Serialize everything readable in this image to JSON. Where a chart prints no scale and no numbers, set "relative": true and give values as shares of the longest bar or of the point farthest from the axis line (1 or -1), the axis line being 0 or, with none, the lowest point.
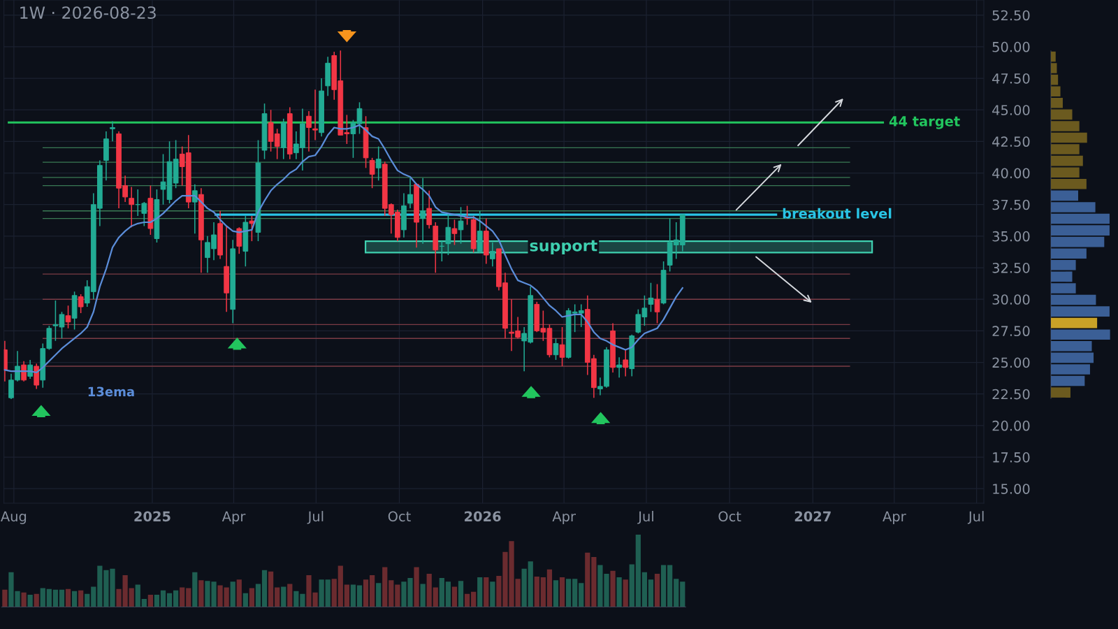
{
  "chart_data": [
    {
      "type": "candlestick",
      "title": "1W · 2026-08-23",
      "x": [
        "2024-07-22",
        "2024-07-29",
        "2024-08-05",
        "2024-08-12",
        "2024-08-19",
        "2024-08-26",
        "2024-09-02",
        "2024-09-09",
        "2024-09-16",
        "2024-09-23",
        "2024-09-30",
        "2024-10-07",
        "2024-10-14",
        "2024-10-21",
        "2024-10-28",
        "2024-11-04",
        "2024-11-11",
        "2024-11-18",
        "2024-11-25",
        "2024-12-02",
        "2024-12-09",
        "2024-12-16",
        "2024-12-23",
        "2024-12-30",
        "2025-01-06",
        "2025-01-13",
        "2025-01-20",
        "2025-01-27",
        "2025-02-03",
        "2025-02-10",
        "2025-02-17",
        "2025-02-24",
        "2025-03-03",
        "2025-03-10",
        "2025-03-17",
        "2025-03-24",
        "2025-03-31",
        "2025-04-07",
        "2025-04-14",
        "2025-04-21",
        "2025-04-28",
        "2025-05-05",
        "2025-05-12",
        "2025-05-19",
        "2025-05-26",
        "2025-06-02",
        "2025-06-09",
        "2025-06-16",
        "2025-06-23",
        "2025-06-30",
        "2025-07-07",
        "2025-07-14",
        "2025-07-21",
        "2025-07-28",
        "2025-08-04",
        "2025-08-11",
        "2025-08-18",
        "2025-08-25",
        "2025-09-01",
        "2025-09-08",
        "2025-09-15",
        "2025-09-22",
        "2025-09-29",
        "2025-10-06",
        "2025-10-13",
        "2025-10-20",
        "2025-10-27",
        "2025-11-03",
        "2025-11-10",
        "2025-11-17",
        "2025-11-24",
        "2025-12-01",
        "2025-12-08",
        "2025-12-15",
        "2025-12-22",
        "2025-12-29",
        "2026-01-05",
        "2026-01-12",
        "2026-01-19",
        "2026-01-26",
        "2026-02-02",
        "2026-02-09",
        "2026-02-16",
        "2026-02-23",
        "2026-03-02",
        "2026-03-09",
        "2026-03-16",
        "2026-03-23",
        "2026-03-30",
        "2026-04-06",
        "2026-04-13",
        "2026-04-20",
        "2026-04-27",
        "2026-05-04",
        "2026-05-11",
        "2026-05-18",
        "2026-05-25",
        "2026-06-01",
        "2026-06-08",
        "2026-06-15",
        "2026-06-22",
        "2026-06-29",
        "2026-07-06",
        "2026-07-13",
        "2026-07-20",
        "2026-07-27",
        "2026-08-03",
        "2026-08-10"
      ],
      "ohlc": [
        [
          26.0,
          26.7,
          23.5,
          24.4
        ],
        [
          22.2,
          24.1,
          22.1,
          23.6
        ],
        [
          23.6,
          25.9,
          23.5,
          24.7
        ],
        [
          24.8,
          25.1,
          23.5,
          23.6
        ],
        [
          23.9,
          25.2,
          23.7,
          24.8
        ],
        [
          24.7,
          24.9,
          22.9,
          23.2
        ],
        [
          23.6,
          26.5,
          23.0,
          26.1
        ],
        [
          26.1,
          27.9,
          26.0,
          27.7
        ],
        [
          27.9,
          29.9,
          26.7,
          28.0
        ],
        [
          27.8,
          29.0,
          26.9,
          28.8
        ],
        [
          28.7,
          29.5,
          27.7,
          28.2
        ],
        [
          28.5,
          30.6,
          27.6,
          30.3
        ],
        [
          30.2,
          30.4,
          28.9,
          29.4
        ],
        [
          29.7,
          31.5,
          29.4,
          31.0
        ],
        [
          30.6,
          38.4,
          30.0,
          37.5
        ],
        [
          37.2,
          41.0,
          35.8,
          40.6
        ],
        [
          41.0,
          43.3,
          39.4,
          42.7
        ],
        [
          43.5,
          44.1,
          42.5,
          43.6
        ],
        [
          43.1,
          43.3,
          37.2,
          38.8
        ],
        [
          39.0,
          39.8,
          37.7,
          38.1
        ],
        [
          38.0,
          38.9,
          35.7,
          37.5
        ],
        [
          37.5,
          38.7,
          36.6,
          37.5
        ],
        [
          36.8,
          37.7,
          35.8,
          37.6
        ],
        [
          38.0,
          39.0,
          35.1,
          35.6
        ],
        [
          34.8,
          38.7,
          34.5,
          37.9
        ],
        [
          38.7,
          41.5,
          37.5,
          39.3
        ],
        [
          37.9,
          42.5,
          37.6,
          40.9
        ],
        [
          39.2,
          42.6,
          38.8,
          41.1
        ],
        [
          41.5,
          42.1,
          39.0,
          40.5
        ],
        [
          41.6,
          43.0,
          37.2,
          37.7
        ],
        [
          37.7,
          39.1,
          35.2,
          38.6
        ],
        [
          38.3,
          38.8,
          32.1,
          34.7
        ],
        [
          33.3,
          35.0,
          32.1,
          34.5
        ],
        [
          34.0,
          36.1,
          33.1,
          35.1
        ],
        [
          36.0,
          37.0,
          33.2,
          33.5
        ],
        [
          32.6,
          35.8,
          29.0,
          30.5
        ],
        [
          29.2,
          34.7,
          28.1,
          34.0
        ],
        [
          35.6,
          35.7,
          33.6,
          34.2
        ],
        [
          33.8,
          36.6,
          32.6,
          36.1
        ],
        [
          36.2,
          36.6,
          34.6,
          36.0
        ],
        [
          35.3,
          42.6,
          34.6,
          40.8
        ],
        [
          41.8,
          45.5,
          41.1,
          44.7
        ],
        [
          44.0,
          45.0,
          41.7,
          42.5
        ],
        [
          43.1,
          43.5,
          41.1,
          42.1
        ],
        [
          42.0,
          44.3,
          41.1,
          44.0
        ],
        [
          44.7,
          45.2,
          41.1,
          41.5
        ],
        [
          41.6,
          43.3,
          41.1,
          42.3
        ],
        [
          42.0,
          45.1,
          40.2,
          43.9
        ],
        [
          44.5,
          44.9,
          41.7,
          43.6
        ],
        [
          43.5,
          46.6,
          42.6,
          43.4
        ],
        [
          43.2,
          47.5,
          42.9,
          46.5
        ],
        [
          46.9,
          49.2,
          46.1,
          48.7
        ],
        [
          49.3,
          49.6,
          45.8,
          46.6
        ],
        [
          47.3,
          49.7,
          43.0,
          43.0
        ],
        [
          43.2,
          44.6,
          42.3,
          43.1
        ],
        [
          43.1,
          44.2,
          41.2,
          44.0
        ],
        [
          43.9,
          45.6,
          43.1,
          45.1
        ],
        [
          43.6,
          44.5,
          40.4,
          41.2
        ],
        [
          41.0,
          41.2,
          38.8,
          39.9
        ],
        [
          40.4,
          42.1,
          39.4,
          41.1
        ],
        [
          40.7,
          40.9,
          36.6,
          37.2
        ],
        [
          37.5,
          37.6,
          35.2,
          36.7
        ],
        [
          36.9,
          37.1,
          34.6,
          34.9
        ],
        [
          35.5,
          38.4,
          34.9,
          37.4
        ],
        [
          37.6,
          39.6,
          37.2,
          38.3
        ],
        [
          39.1,
          39.2,
          34.1,
          36.1
        ],
        [
          36.4,
          39.6,
          34.4,
          37.0
        ],
        [
          37.2,
          38.6,
          35.6,
          35.9
        ],
        [
          35.8,
          36.1,
          32.1,
          33.9
        ],
        [
          34.2,
          34.6,
          33.0,
          34.2
        ],
        [
          34.4,
          36.8,
          33.5,
          35.7
        ],
        [
          35.6,
          36.3,
          34.3,
          35.2
        ],
        [
          35.5,
          37.3,
          34.4,
          36.2
        ],
        [
          36.5,
          37.4,
          35.9,
          36.4
        ],
        [
          36.3,
          36.6,
          33.7,
          34.0
        ],
        [
          33.8,
          37.0,
          33.7,
          35.4
        ],
        [
          35.4,
          36.4,
          32.8,
          33.5
        ],
        [
          33.2,
          34.5,
          32.6,
          33.8
        ],
        [
          34.0,
          34.0,
          30.7,
          31.0
        ],
        [
          31.3,
          32.1,
          26.9,
          27.7
        ],
        [
          27.4,
          30.0,
          25.9,
          27.3
        ],
        [
          27.5,
          28.6,
          26.9,
          27.0
        ],
        [
          26.7,
          27.8,
          24.3,
          27.3
        ],
        [
          26.6,
          31.0,
          26.5,
          30.3
        ],
        [
          29.6,
          29.8,
          27.4,
          27.5
        ],
        [
          27.7,
          29.1,
          26.7,
          27.4
        ],
        [
          27.7,
          28.0,
          25.4,
          25.6
        ],
        [
          25.6,
          26.9,
          25.2,
          26.5
        ],
        [
          26.4,
          27.8,
          24.7,
          25.4
        ],
        [
          25.4,
          29.3,
          25.3,
          29.1
        ],
        [
          28.9,
          29.6,
          27.4,
          29.0
        ],
        [
          28.9,
          29.6,
          27.8,
          29.1
        ],
        [
          29.2,
          30.3,
          24.0,
          25.0
        ],
        [
          25.3,
          25.6,
          22.2,
          23.0
        ],
        [
          22.9,
          23.8,
          22.4,
          23.1
        ],
        [
          23.1,
          26.2,
          23.0,
          26.0
        ],
        [
          27.5,
          28.1,
          24.2,
          24.6
        ],
        [
          24.6,
          25.4,
          23.8,
          24.8
        ],
        [
          25.2,
          26.0,
          23.9,
          24.6
        ],
        [
          24.5,
          27.2,
          23.9,
          27.1
        ],
        [
          27.4,
          29.2,
          27.3,
          28.8
        ],
        [
          28.6,
          30.3,
          27.9,
          29.3
        ],
        [
          29.6,
          31.3,
          29.0,
          30.1
        ],
        [
          30.0,
          31.2,
          28.1,
          29.0
        ],
        [
          29.7,
          33.0,
          29.6,
          32.3
        ],
        [
          32.7,
          36.4,
          32.2,
          34.5
        ],
        [
          34.3,
          36.1,
          33.2,
          34.7
        ],
        [
          34.3,
          36.7,
          33.8,
          36.7
        ]
      ],
      "colors": [
        "#f23645",
        "#22ab94",
        "#22ab94",
        "#f23645",
        "#22ab94",
        "#f23645",
        "#22ab94",
        "#22ab94",
        "#22ab94",
        "#22ab94",
        "#f23645",
        "#22ab94",
        "#f23645",
        "#22ab94",
        "#22ab94",
        "#22ab94",
        "#22ab94",
        "#22ab94",
        "#f23645",
        "#f23645",
        "#f23645",
        "#22ab94",
        "#22ab94",
        "#f23645",
        "#22ab94",
        "#22ab94",
        "#22ab94",
        "#22ab94",
        "#f23645",
        "#f23645",
        "#22ab94",
        "#f23645",
        "#22ab94",
        "#22ab94",
        "#f23645",
        "#f23645",
        "#22ab94",
        "#f23645",
        "#22ab94",
        "#f23645",
        "#22ab94",
        "#22ab94",
        "#f23645",
        "#f23645",
        "#22ab94",
        "#f23645",
        "#22ab94",
        "#22ab94",
        "#f23645",
        "#f23645",
        "#22ab94",
        "#22ab94",
        "#f23645",
        "#f23645",
        "#f23645",
        "#22ab94",
        "#22ab94",
        "#f23645",
        "#f23645",
        "#22ab94",
        "#f23645",
        "#f23645",
        "#f23645",
        "#22ab94",
        "#22ab94",
        "#f23645",
        "#22ab94",
        "#f23645",
        "#f23645",
        "#22ab94",
        "#22ab94",
        "#f23645",
        "#22ab94",
        "#f23645",
        "#f23645",
        "#22ab94",
        "#f23645",
        "#22ab94",
        "#f23645",
        "#f23645",
        "#f23645",
        "#f23645",
        "#22ab94",
        "#22ab94",
        "#f23645",
        "#f23645",
        "#f23645",
        "#22ab94",
        "#f23645",
        "#22ab94",
        "#22ab94",
        "#22ab94",
        "#f23645",
        "#f23645",
        "#22ab94",
        "#22ab94",
        "#f23645",
        "#22ab94",
        "#f23645",
        "#22ab94",
        "#22ab94",
        "#22ab94",
        "#22ab94",
        "#f23645",
        "#22ab94",
        "#22ab94",
        "#22ab94",
        "#22ab94"
      ],
      "series": [
        {
          "type": "line",
          "name": "13ema",
          "color": "#5b8dd9",
          "values": [
            24.4,
            24.3,
            24.3,
            24.3,
            24.3,
            24.2,
            24.6,
            25.1,
            25.6,
            26.1,
            26.5,
            26.9,
            27.3,
            27.8,
            29.0,
            31.0,
            32.4,
            34.1,
            34.9,
            35.4,
            35.8,
            36.0,
            36.1,
            36.1,
            36.4,
            36.8,
            37.3,
            37.8,
            38.2,
            38.2,
            38.2,
            37.7,
            37.2,
            36.9,
            36.3,
            35.8,
            35.4,
            35.3,
            35.4,
            35.5,
            36.9,
            37.8,
            38.6,
            39.1,
            39.5,
            40.0,
            40.3,
            40.9,
            41.3,
            41.4,
            42.1,
            43.0,
            43.6,
            43.5,
            43.5,
            43.6,
            43.8,
            43.4,
            42.9,
            42.7,
            41.9,
            41.0,
            40.2,
            39.9,
            39.7,
            39.1,
            38.7,
            38.2,
            37.3,
            36.9,
            36.8,
            36.7,
            36.6,
            36.5,
            36.5,
            36.2,
            35.8,
            35.4,
            34.7,
            33.5,
            32.4,
            31.5,
            31.3,
            31.1,
            30.7,
            30.1,
            29.5,
            29.1,
            28.6,
            28.7,
            28.8,
            28.8,
            28.2,
            27.4,
            26.9,
            26.7,
            26.4,
            26.2,
            26.0,
            26.2,
            26.8,
            27.3,
            27.5,
            27.7,
            28.4,
            29.3,
            30.2,
            30.9
          ]
        }
      ],
      "xlim": [
        "2024-07-21",
        "2027-07-09"
      ],
      "xticks": [
        {
          "value": "2024-08-01",
          "label": "Aug"
        },
        {
          "value": "2025-01-01",
          "label": "2025"
        },
        {
          "value": "2025-04-01",
          "label": "Apr"
        },
        {
          "value": "2025-07-01",
          "label": "Jul"
        },
        {
          "value": "2025-10-01",
          "label": "Oct"
        },
        {
          "value": "2026-01-01",
          "label": "2026"
        },
        {
          "value": "2026-04-01",
          "label": "Apr"
        },
        {
          "value": "2026-07-01",
          "label": "Jul"
        },
        {
          "value": "2026-10-01",
          "label": "Oct"
        },
        {
          "value": "2027-01-01",
          "label": "2027"
        },
        {
          "value": "2027-04-01",
          "label": "Apr"
        },
        {
          "value": "2027-07-01",
          "label": "Jul"
        }
      ],
      "ylim": [
        13.85,
        53.7
      ],
      "yticks": [
        {
          "value": 15,
          "label": "15.00"
        },
        {
          "value": 17.5,
          "label": "17.50"
        },
        {
          "value": 20,
          "label": "20.00"
        },
        {
          "value": 22.5,
          "label": "22.50"
        },
        {
          "value": 25,
          "label": "25.00"
        },
        {
          "value": 27.5,
          "label": "27.50"
        },
        {
          "value": 30,
          "label": "30.00"
        },
        {
          "value": 32.5,
          "label": "32.50"
        },
        {
          "value": 35,
          "label": "35.00"
        },
        {
          "value": 37.5,
          "label": "37.50"
        },
        {
          "value": 40,
          "label": "40.00"
        },
        {
          "value": 42.5,
          "label": "42.50"
        },
        {
          "value": 45,
          "label": "45.00"
        },
        {
          "value": 47.5,
          "label": "47.50"
        },
        {
          "value": 50,
          "label": "50.00"
        },
        {
          "value": 52.5,
          "label": "52.50"
        }
      ],
      "ref_lines": [
        {
          "axis": "y",
          "value": 44,
          "label": "44 target",
          "color": "#22c55e"
        },
        {
          "axis": "y",
          "value": 36.7,
          "label": "breakout level",
          "color": "#29c5e6"
        },
        {
          "axis": "y",
          "value": 42.0,
          "color": "#3a7a55"
        },
        {
          "axis": "y",
          "value": 40.85,
          "color": "#3a7a55"
        },
        {
          "axis": "y",
          "value": 39.65,
          "color": "#3a7a55"
        },
        {
          "axis": "y",
          "value": 39.0,
          "color": "#3a7a55"
        },
        {
          "axis": "y",
          "value": 37.0,
          "color": "#3a7a55"
        },
        {
          "axis": "y",
          "value": 36.4,
          "color": "#3a7a55"
        },
        {
          "axis": "y",
          "value": 32.0,
          "color": "#7b3b45"
        },
        {
          "axis": "y",
          "value": 30.0,
          "color": "#7b3b45"
        },
        {
          "axis": "y",
          "value": 28.0,
          "color": "#7b3b45"
        },
        {
          "axis": "y",
          "value": 26.9,
          "color": "#7b3b45"
        },
        {
          "axis": "y",
          "value": 24.7,
          "color": "#7b3b45"
        }
      ],
      "bands": [
        {
          "axis": "y",
          "from": 33.7,
          "to": 34.6,
          "label": "support",
          "color": "#3fd0b0"
        }
      ],
      "grid": true
    },
    {
      "type": "bar",
      "relative": true,
      "tick_labels": false,
      "categories": [
        null,
        null,
        null,
        null,
        null,
        null,
        null,
        null,
        null,
        null,
        null,
        null,
        null,
        null,
        null,
        null,
        null,
        null,
        null,
        null,
        null,
        null,
        null,
        null,
        null,
        null,
        null,
        null,
        null,
        null,
        null,
        null,
        null,
        null,
        null,
        null,
        null,
        null,
        null,
        null,
        null,
        null,
        null,
        null,
        null,
        null,
        null,
        null,
        null,
        null,
        null,
        null,
        null,
        null,
        null,
        null,
        null,
        null,
        null,
        null,
        null,
        null,
        null,
        null,
        null,
        null,
        null,
        null,
        null,
        null,
        null,
        null,
        null,
        null,
        null,
        null,
        null,
        null,
        null,
        null,
        null,
        null,
        null,
        null,
        null,
        null,
        null,
        null,
        null,
        null,
        null,
        null,
        null,
        null,
        null,
        null,
        null,
        null,
        null,
        null,
        null,
        null,
        null,
        null,
        null,
        null,
        null,
        null
      ],
      "values": [
        0.24,
        0.48,
        0.22,
        0.2,
        0.17,
        0.18,
        0.26,
        0.25,
        0.24,
        0.24,
        0.25,
        0.22,
        0.23,
        0.18,
        0.28,
        0.57,
        0.51,
        0.53,
        0.25,
        0.44,
        0.26,
        0.31,
        0.11,
        0.17,
        0.17,
        0.23,
        0.19,
        0.23,
        0.27,
        0.26,
        0.48,
        0.37,
        0.36,
        0.35,
        0.3,
        0.27,
        0.35,
        0.38,
        0.19,
        0.26,
        0.32,
        0.51,
        0.49,
        0.27,
        0.28,
        0.32,
        0.22,
        0.18,
        0.44,
        0.2,
        0.38,
        0.38,
        0.39,
        0.57,
        0.31,
        0.31,
        0.3,
        0.38,
        0.44,
        0.33,
        0.55,
        0.37,
        0.31,
        0.35,
        0.4,
        0.55,
        0.32,
        0.46,
        0.27,
        0.4,
        0.35,
        0.28,
        0.36,
        0.18,
        0.21,
        0.41,
        0.41,
        0.35,
        0.43,
        0.76,
        0.91,
        0.39,
        0.53,
        0.63,
        0.42,
        0.41,
        0.52,
        0.37,
        0.41,
        0.39,
        0.39,
        0.33,
        0.75,
        0.69,
        0.58,
        0.46,
        0.5,
        0.41,
        0.38,
        0.59,
        1,
        0.48,
        0.38,
        0.46,
        0.58,
        0.58,
        0.39,
        0.35
      ],
      "colors": [
        "#6b2b2f",
        "#1f5f52",
        "#1f5f52",
        "#6b2b2f",
        "#1f5f52",
        "#6b2b2f",
        "#1f5f52",
        "#1f5f52",
        "#1f5f52",
        "#1f5f52",
        "#6b2b2f",
        "#1f5f52",
        "#6b2b2f",
        "#1f5f52",
        "#1f5f52",
        "#1f5f52",
        "#1f5f52",
        "#1f5f52",
        "#6b2b2f",
        "#6b2b2f",
        "#6b2b2f",
        "#1f5f52",
        "#1f5f52",
        "#6b2b2f",
        "#1f5f52",
        "#1f5f52",
        "#1f5f52",
        "#1f5f52",
        "#6b2b2f",
        "#6b2b2f",
        "#1f5f52",
        "#6b2b2f",
        "#1f5f52",
        "#1f5f52",
        "#6b2b2f",
        "#6b2b2f",
        "#1f5f52",
        "#6b2b2f",
        "#1f5f52",
        "#6b2b2f",
        "#1f5f52",
        "#1f5f52",
        "#6b2b2f",
        "#6b2b2f",
        "#1f5f52",
        "#6b2b2f",
        "#1f5f52",
        "#1f5f52",
        "#6b2b2f",
        "#6b2b2f",
        "#1f5f52",
        "#1f5f52",
        "#6b2b2f",
        "#6b2b2f",
        "#6b2b2f",
        "#1f5f52",
        "#1f5f52",
        "#6b2b2f",
        "#6b2b2f",
        "#1f5f52",
        "#6b2b2f",
        "#6b2b2f",
        "#6b2b2f",
        "#1f5f52",
        "#1f5f52",
        "#6b2b2f",
        "#1f5f52",
        "#6b2b2f",
        "#6b2b2f",
        "#1f5f52",
        "#1f5f52",
        "#6b2b2f",
        "#1f5f52",
        "#6b2b2f",
        "#6b2b2f",
        "#1f5f52",
        "#6b2b2f",
        "#1f5f52",
        "#6b2b2f",
        "#6b2b2f",
        "#6b2b2f",
        "#6b2b2f",
        "#1f5f52",
        "#1f5f52",
        "#6b2b2f",
        "#6b2b2f",
        "#6b2b2f",
        "#1f5f52",
        "#6b2b2f",
        "#1f5f52",
        "#1f5f52",
        "#1f5f52",
        "#6b2b2f",
        "#6b2b2f",
        "#1f5f52",
        "#1f5f52",
        "#6b2b2f",
        "#1f5f52",
        "#6b2b2f",
        "#1f5f52",
        "#1f5f52",
        "#1f5f52",
        "#1f5f52",
        "#6b2b2f",
        "#1f5f52",
        "#1f5f52",
        "#1f5f52",
        "#1f5f52"
      ]
    },
    {
      "type": "bar",
      "orientation": "horizontal",
      "relative": true,
      "tick_labels": false,
      "categories": [
        null,
        null,
        null,
        null,
        null,
        null,
        null,
        null,
        null,
        null,
        null,
        null,
        null,
        null,
        null,
        null,
        null,
        null,
        null,
        null,
        null,
        null,
        null,
        null,
        null,
        null,
        null,
        null,
        null,
        null
      ],
      "values": [
        0.08,
        0.1,
        0.12,
        0.16,
        0.2,
        0.36,
        0.48,
        0.61,
        0.48,
        0.54,
        0.48,
        0.6,
        0.46,
        0.75,
        0.99,
        0.99,
        0.9,
        0.6,
        0.42,
        0.36,
        0.42,
        0.76,
        0.99,
        0.78,
        1,
        0.69,
        0.72,
        0.66,
        0.57,
        0.33
      ],
      "colors": [
        "#6b5a1f",
        "#6b5a1f",
        "#6b5a1f",
        "#6b5a1f",
        "#6b5a1f",
        "#6b5a1f",
        "#6b5a1f",
        "#6b5a1f",
        "#6b5a1f",
        "#6b5a1f",
        "#6b5a1f",
        "#6b5a1f",
        "#3b5f96",
        "#3b5f96",
        "#3b5f96",
        "#3b5f96",
        "#3b5f96",
        "#3b5f96",
        "#3b5f96",
        "#3b5f96",
        "#3b5f96",
        "#3b5f96",
        "#3b5f96",
        "#c9a227",
        "#3b5f96",
        "#3b5f96",
        "#3b5f96",
        "#3b5f96",
        "#3b5f96",
        "#6b5a1f"
      ]
    }
  ]
}
